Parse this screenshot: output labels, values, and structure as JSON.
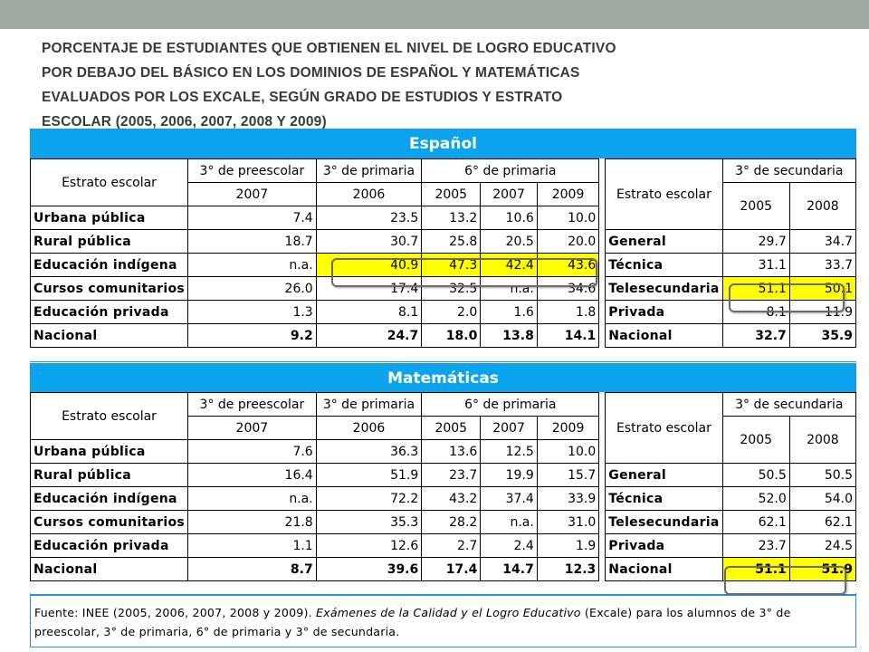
{
  "title_lines": [
    "PORCENTAJE DE ESTUDIANTES QUE OBTIENEN EL NIVEL DE LOGRO EDUCATIVO",
    "POR DEBAJO DEL BÁSICO EN LOS DOMINIOS DE ESPAÑOL Y MATEMÁTICAS",
    "EVALUADOS POR LOS EXCALE, SEGÚN GRADO DE ESTUDIOS Y ESTRATO",
    "ESCOLAR (2005, 2006, 2007, 2008 Y 2009)"
  ],
  "espanol": {
    "heading": "Español",
    "col_headers": {
      "estrato": "Estrato escolar",
      "preescolar": "3° de preescolar",
      "primaria3": "3° de primaria",
      "primaria6": "6° de primaria",
      "estrato_sec": "Estrato escolar",
      "secundaria": "3° de secundaria"
    },
    "years": [
      "2007",
      "2006",
      "2005",
      "2007",
      "2009",
      "2005",
      "2008"
    ],
    "rows": [
      {
        "label": "Urbana pública",
        "pre07": "7.4",
        "pri06": "23.5",
        "p05": "13.2",
        "p07": "10.6",
        "p09": "10.0",
        "sec_label": "",
        "s05": "",
        "s08": ""
      },
      {
        "label": "Rural pública",
        "pre07": "18.7",
        "pri06": "30.7",
        "p05": "25.8",
        "p07": "20.5",
        "p09": "20.0",
        "sec_label": "General",
        "s05": "29.7",
        "s08": "34.7"
      },
      {
        "label": "Educación indígena",
        "pre07": "n.a.",
        "pri06": "40.9",
        "p05": "47.3",
        "p07": "42.4",
        "p09": "43.6",
        "sec_label": "Técnica",
        "s05": "31.1",
        "s08": "33.7"
      },
      {
        "label": "Cursos comunitarios",
        "pre07": "26.0",
        "pri06": "17.4",
        "p05": "32.5",
        "p07": "n.a.",
        "p09": "34.6",
        "sec_label": "Telesecundaria",
        "s05": "51.1",
        "s08": "50.1"
      },
      {
        "label": "Educación privada",
        "pre07": "1.3",
        "pri06": "8.1",
        "p05": "2.0",
        "p07": "1.6",
        "p09": "1.8",
        "sec_label": "Privada",
        "s05": "8.1",
        "s08": "11.9"
      },
      {
        "label": "Nacional",
        "pre07": "9.2",
        "pri06": "24.7",
        "p05": "18.0",
        "p07": "13.8",
        "p09": "14.1",
        "sec_label": "Nacional",
        "s05": "32.7",
        "s08": "35.9"
      }
    ]
  },
  "matematicas": {
    "heading": "Matemáticas",
    "col_headers": {
      "estrato": "Estrato escolar",
      "preescolar": "3° de preescolar",
      "primaria3": "3° de primaria",
      "primaria6": "6° de primaria",
      "estrato_sec": "Estrato escolar",
      "secundaria": "3° de secundaria"
    },
    "years": [
      "2007",
      "2006",
      "2005",
      "2007",
      "2009",
      "2005",
      "2008"
    ],
    "rows": [
      {
        "label": "Urbana pública",
        "pre07": "7.6",
        "pri06": "36.3",
        "p05": "13.6",
        "p07": "12.5",
        "p09": "10.0",
        "sec_label": "",
        "s05": "",
        "s08": ""
      },
      {
        "label": "Rural pública",
        "pre07": "16.4",
        "pri06": "51.9",
        "p05": "23.7",
        "p07": "19.9",
        "p09": "15.7",
        "sec_label": "General",
        "s05": "50.5",
        "s08": "50.5"
      },
      {
        "label": "Educación indígena",
        "pre07": "n.a.",
        "pri06": "72.2",
        "p05": "43.2",
        "p07": "37.4",
        "p09": "33.9",
        "sec_label": "Técnica",
        "s05": "52.0",
        "s08": "54.0"
      },
      {
        "label": "Cursos comunitarios",
        "pre07": "21.8",
        "pri06": "35.3",
        "p05": "28.2",
        "p07": "n.a.",
        "p09": "31.0",
        "sec_label": "Telesecundaria",
        "s05": "62.1",
        "s08": "62.1"
      },
      {
        "label": "Educación privada",
        "pre07": "1.1",
        "pri06": "12.6",
        "p05": "2.7",
        "p07": "2.4",
        "p09": "1.9",
        "sec_label": "Privada",
        "s05": "23.7",
        "s08": "24.5"
      },
      {
        "label": "Nacional",
        "pre07": "8.7",
        "pri06": "39.6",
        "p05": "17.4",
        "p07": "14.7",
        "p09": "12.3",
        "sec_label": "Nacional",
        "s05": "51.1",
        "s08": "51.9"
      }
    ]
  },
  "source": {
    "prefix": "Fuente: INEE (2005, 2006, 2007, 2008 y 2009). ",
    "italic": "Exámenes de la Calidad y el Logro Educativo",
    "suffix": " (Excale) para los alumnos de 3° de preescolar, 3° de primaria, 6° de primaria y 3° de secundaria."
  },
  "colors": {
    "panel_header": "#0aa4ee",
    "highlight": "#ffff00",
    "top_bar": "#9fa8a0"
  }
}
